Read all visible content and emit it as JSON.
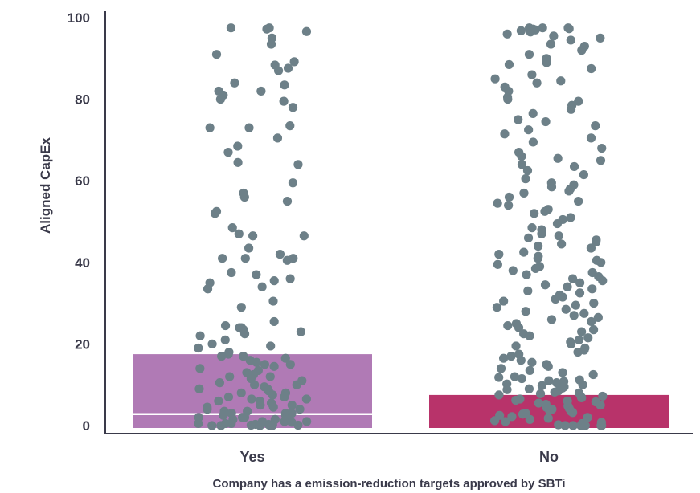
{
  "chart_data": {
    "type": "bar",
    "subtype": "bar-with-jittered-points",
    "title": "",
    "xlabel": "Company has a emission-reduction targets approved by SBTi",
    "ylabel": "Aligned CapEx",
    "ylim": [
      0,
      100
    ],
    "yticks": [
      "0",
      "20",
      "40",
      "60",
      "80",
      "100"
    ],
    "categories": [
      "Yes",
      "No"
    ],
    "series": [
      {
        "values": [
          17.5,
          7.5
        ],
        "medians": [
          2.8,
          null
        ],
        "colors": [
          "#b07ab5",
          "#b8336a"
        ],
        "points": [
          [
            97.5,
            97.5,
            97.2,
            96.6,
            95.0,
            93.5,
            91.0,
            89.2,
            88.4,
            87.6,
            87.0,
            84.0,
            83.5,
            82.0,
            82.0,
            81.0,
            80.0,
            79.5,
            78.0,
            73.5,
            73.0,
            73.0,
            70.5,
            68.5,
            67.0,
            64.5,
            64.0,
            59.5,
            57.0,
            56.0,
            55.0,
            52.5,
            52.0,
            48.5,
            47.0,
            46.5,
            46.5,
            43.5,
            42.0,
            41.0,
            41.0,
            41.0,
            40.5,
            37.5,
            37.0,
            36.0,
            35.5,
            35.0,
            34.0,
            33.5,
            30.5,
            29.0,
            25.5,
            24.5,
            24.0,
            24.0,
            23.5,
            23.0,
            22.5,
            22.0,
            21.0,
            20.0,
            19.5,
            19.0,
            18.0,
            17.5,
            17.0,
            17.0,
            16.5,
            16.0,
            15.5,
            15.0,
            15.0,
            14.5,
            14.0,
            13.5,
            13.0,
            12.5,
            12.0,
            12.0,
            11.5,
            11.0,
            10.5,
            10.0,
            10.0,
            9.5,
            9.0,
            9.0,
            8.5,
            8.0,
            8.0,
            7.5,
            7.0,
            7.0,
            6.5,
            6.5,
            6.0,
            6.0,
            5.5,
            5.0,
            5.0,
            4.5,
            4.5,
            4.0,
            4.0,
            3.5,
            3.5,
            3.0,
            3.0,
            3.0,
            2.5,
            2.5,
            2.0,
            2.0,
            2.0,
            1.5,
            1.5,
            1.5,
            1.0,
            1.0,
            1.0,
            0.8,
            0.5,
            0.5,
            0.5,
            0.3,
            0.3,
            0.2,
            0.2,
            0.1,
            0.1,
            0.1,
            0.0,
            0.0,
            0.0,
            0.0
          ],
          [
            97.5,
            97.5,
            97.5,
            97.3,
            97.2,
            97.0,
            96.8,
            96.5,
            96.0,
            95.5,
            95.0,
            94.5,
            93.5,
            93.0,
            92.0,
            91.0,
            90.0,
            89.0,
            88.5,
            87.5,
            86.0,
            85.0,
            84.5,
            84.0,
            83.0,
            82.0,
            80.5,
            80.0,
            79.5,
            78.5,
            77.5,
            76.5,
            75.0,
            74.5,
            73.5,
            72.5,
            71.5,
            70.5,
            69.5,
            68.0,
            67.0,
            66.0,
            65.5,
            65.0,
            64.0,
            63.5,
            62.5,
            61.5,
            60.5,
            59.5,
            59.0,
            58.5,
            58.0,
            57.5,
            57.0,
            56.0,
            55.0,
            54.5,
            54.0,
            53.0,
            52.5,
            52.0,
            51.0,
            50.5,
            49.5,
            48.5,
            48.0,
            47.0,
            46.5,
            46.0,
            45.5,
            45.0,
            44.5,
            44.0,
            43.5,
            42.5,
            42.0,
            41.5,
            41.0,
            40.5,
            40.0,
            39.5,
            39.0,
            38.5,
            38.0,
            37.5,
            37.0,
            36.5,
            36.0,
            35.5,
            35.0,
            34.5,
            34.0,
            33.5,
            33.0,
            32.5,
            32.0,
            31.5,
            31.0,
            30.5,
            30.0,
            29.5,
            29.0,
            28.5,
            28.0,
            27.5,
            27.0,
            26.5,
            26.0,
            25.5,
            25.0,
            24.5,
            24.0,
            23.5,
            23.0,
            22.5,
            22.0,
            21.5,
            21.0,
            20.5,
            20.0,
            19.5,
            19.0,
            18.5,
            18.0,
            17.5,
            17.0,
            16.5,
            16.0,
            15.5,
            15.0,
            14.5,
            14.0,
            13.5,
            13.0,
            12.5,
            12.0,
            11.8,
            11.5,
            11.2,
            11.0,
            10.8,
            10.5,
            10.2,
            10.0,
            9.8,
            9.5,
            9.2,
            9.0,
            8.8,
            8.5,
            8.2,
            8.0,
            7.8,
            7.5,
            7.2,
            7.0,
            6.8,
            6.5,
            6.2,
            6.0,
            5.8,
            5.5,
            5.2,
            5.0,
            4.8,
            4.5,
            4.2,
            4.0,
            3.8,
            3.5,
            3.2,
            3.0,
            2.8,
            2.5,
            2.2,
            2.0,
            1.8,
            1.5,
            1.2,
            1.0,
            0.8,
            0.5,
            0.2,
            0.0,
            0.0,
            0.0,
            0.0,
            0.0,
            0.0
          ]
        ]
      }
    ],
    "grid": false,
    "legend": "none",
    "point_color": "#6d8088",
    "text_color": "#3a3a4a",
    "axis_color": "#3a3a4a"
  }
}
